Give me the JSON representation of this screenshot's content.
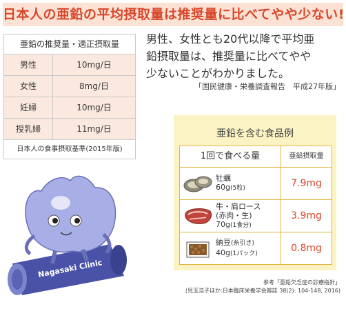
{
  "headline": "日本人の亜鉛の平均摂取量は推奨量に比べてやや少ない!",
  "intake_table": {
    "header": "亜鉛の推奨量・適正摂取量",
    "rows": [
      {
        "who": "男性",
        "amount": "10mg/日"
      },
      {
        "who": "女性",
        "amount": "8mg/日"
      },
      {
        "who": "妊婦",
        "amount": "10mg/日"
      },
      {
        "who": "授乳婦",
        "amount": "11mg/日"
      }
    ],
    "source": "日本人の食事摂取基準(2015年版)"
  },
  "intro": {
    "lines": [
      "男性、女性とも20代以降で平均亜",
      "鉛摂取量は、推奨量に比べてやや",
      "少ないことがわかりました。"
    ],
    "source": "「国民健康・栄養調査報告　平成27年版」"
  },
  "mascot": {
    "label": "Nagasaki Clinic"
  },
  "foods": {
    "title": "亜鉛を含む食品例",
    "col_food": "1回で食べる量",
    "col_amount": "亜鉛摂取量",
    "items": [
      {
        "icon": "oyster-icon",
        "name": "牡蠣",
        "qty": "60g",
        "note": "(5粒)",
        "value": "7.9mg"
      },
      {
        "icon": "beef-icon",
        "name": "牛・肩ロース",
        "sub": "(赤肉・生)",
        "qty": "70g",
        "note": "(1食分)",
        "value": "3.9mg"
      },
      {
        "icon": "natto-icon",
        "name": "納豆",
        "sub": "(糸引き)",
        "qty": "40g",
        "note": "(1パック)",
        "value": "0.8mg"
      }
    ]
  },
  "reference": {
    "line1": "参考「亜鉛欠乏症の診療指針」",
    "line2": "(児玉浩子ほか:日本臨床栄養学会雑誌 38(2): 104-148, 2016)"
  }
}
